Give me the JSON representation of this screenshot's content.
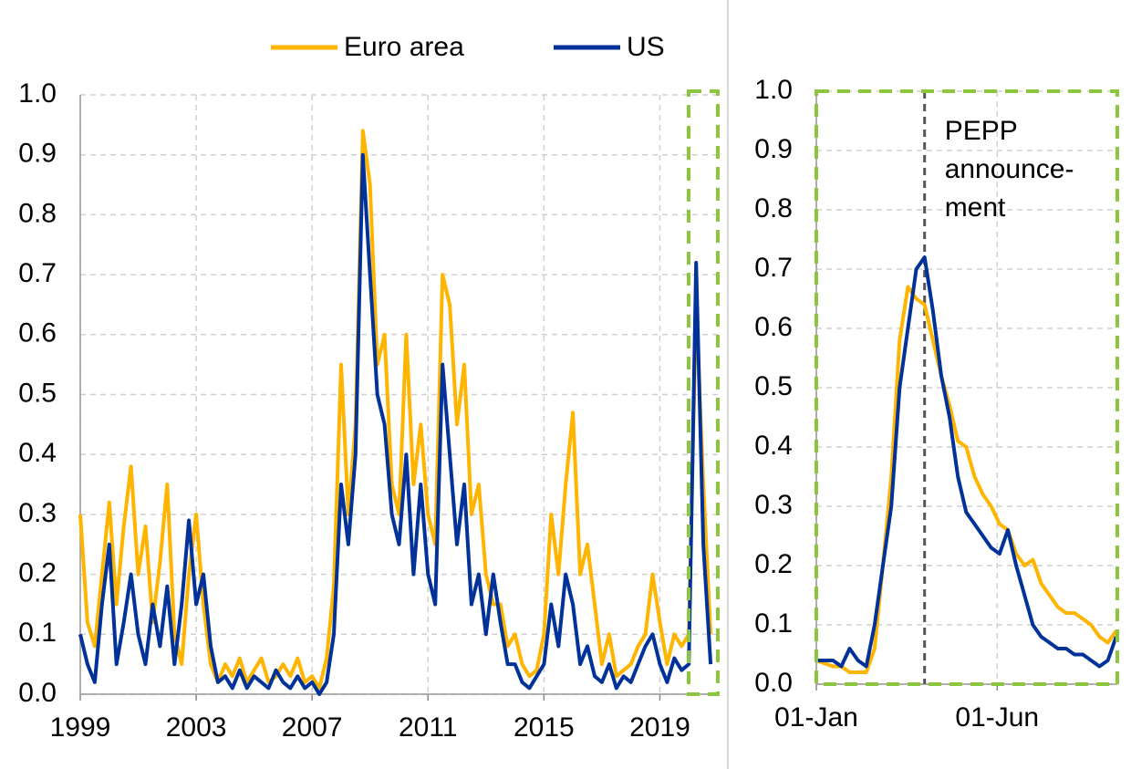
{
  "chart_data": [
    {
      "type": "line",
      "x": [
        1999,
        1999.25,
        1999.5,
        1999.75,
        2000,
        2000.25,
        2000.5,
        2000.75,
        2001,
        2001.25,
        2001.5,
        2001.75,
        2002,
        2002.25,
        2002.5,
        2002.75,
        2003,
        2003.25,
        2003.5,
        2003.75,
        2004,
        2004.25,
        2004.5,
        2004.75,
        2005,
        2005.25,
        2005.5,
        2005.75,
        2006,
        2006.25,
        2006.5,
        2006.75,
        2007,
        2007.25,
        2007.5,
        2007.75,
        2008,
        2008.25,
        2008.5,
        2008.75,
        2009,
        2009.25,
        2009.5,
        2009.75,
        2010,
        2010.25,
        2010.5,
        2010.75,
        2011,
        2011.25,
        2011.5,
        2011.75,
        2012,
        2012.25,
        2012.5,
        2012.75,
        2013,
        2013.25,
        2013.5,
        2013.75,
        2014,
        2014.25,
        2014.5,
        2014.75,
        2015,
        2015.25,
        2015.5,
        2015.75,
        2016,
        2016.25,
        2016.5,
        2016.75,
        2017,
        2017.25,
        2017.5,
        2017.75,
        2018,
        2018.25,
        2018.5,
        2018.75,
        2019,
        2019.25,
        2019.5,
        2019.75,
        2020,
        2020.25,
        2020.5,
        2020.75
      ],
      "series": [
        {
          "name": "Euro area",
          "color": "#ffb400",
          "values": [
            0.3,
            0.12,
            0.08,
            0.2,
            0.32,
            0.15,
            0.28,
            0.38,
            0.2,
            0.28,
            0.12,
            0.22,
            0.35,
            0.1,
            0.05,
            0.2,
            0.3,
            0.15,
            0.05,
            0.02,
            0.05,
            0.03,
            0.06,
            0.02,
            0.04,
            0.06,
            0.02,
            0.03,
            0.05,
            0.03,
            0.06,
            0.02,
            0.03,
            0.01,
            0.06,
            0.18,
            0.55,
            0.3,
            0.45,
            0.94,
            0.85,
            0.55,
            0.6,
            0.35,
            0.3,
            0.6,
            0.35,
            0.45,
            0.3,
            0.25,
            0.7,
            0.65,
            0.45,
            0.55,
            0.3,
            0.35,
            0.2,
            0.15,
            0.15,
            0.08,
            0.1,
            0.05,
            0.03,
            0.04,
            0.1,
            0.3,
            0.2,
            0.35,
            0.47,
            0.2,
            0.25,
            0.15,
            0.05,
            0.1,
            0.03,
            0.04,
            0.05,
            0.08,
            0.1,
            0.2,
            0.12,
            0.05,
            0.1,
            0.08,
            0.1,
            0.65,
            0.35,
            0.1
          ]
        },
        {
          "name": "US",
          "color": "#003299",
          "values": [
            0.1,
            0.05,
            0.02,
            0.15,
            0.25,
            0.05,
            0.12,
            0.2,
            0.1,
            0.05,
            0.15,
            0.08,
            0.18,
            0.05,
            0.15,
            0.29,
            0.15,
            0.2,
            0.08,
            0.02,
            0.03,
            0.01,
            0.04,
            0.01,
            0.03,
            0.02,
            0.01,
            0.04,
            0.02,
            0.01,
            0.03,
            0.01,
            0.02,
            0.0,
            0.02,
            0.1,
            0.35,
            0.25,
            0.4,
            0.9,
            0.7,
            0.5,
            0.45,
            0.3,
            0.25,
            0.4,
            0.2,
            0.35,
            0.2,
            0.15,
            0.55,
            0.4,
            0.25,
            0.35,
            0.15,
            0.2,
            0.1,
            0.2,
            0.12,
            0.05,
            0.05,
            0.02,
            0.01,
            0.03,
            0.05,
            0.15,
            0.08,
            0.2,
            0.15,
            0.05,
            0.08,
            0.03,
            0.02,
            0.05,
            0.01,
            0.03,
            0.02,
            0.05,
            0.08,
            0.1,
            0.05,
            0.02,
            0.06,
            0.04,
            0.05,
            0.72,
            0.25,
            0.05
          ]
        }
      ],
      "xlim": [
        1999,
        2021
      ],
      "xticks": [
        1999,
        2003,
        2007,
        2011,
        2015,
        2019
      ],
      "ylim": [
        0,
        1
      ],
      "yticks": [
        {
          "value": 0,
          "label": "0.0"
        },
        0.1,
        0.2,
        0.3,
        0.4,
        0.5,
        0.6,
        0.7,
        0.8,
        0.9,
        {
          "value": 1,
          "label": "1.0"
        }
      ],
      "grid": true,
      "legend": "top"
    },
    {
      "type": "line",
      "x": [
        0,
        7,
        14,
        21,
        28,
        35,
        42,
        49,
        56,
        63,
        70,
        77,
        84,
        91,
        98,
        105,
        112,
        119,
        126,
        133,
        140,
        147,
        154,
        161,
        168,
        175,
        182,
        189,
        196,
        203,
        210,
        217,
        224,
        231,
        238,
        245,
        252
      ],
      "series": [
        {
          "color": "#ffb400",
          "values": [
            0.04,
            0.035,
            0.03,
            0.03,
            0.02,
            0.02,
            0.02,
            0.06,
            0.2,
            0.35,
            0.58,
            0.67,
            0.65,
            0.64,
            0.58,
            0.52,
            0.47,
            0.41,
            0.4,
            0.35,
            0.32,
            0.3,
            0.27,
            0.26,
            0.22,
            0.2,
            0.21,
            0.17,
            0.15,
            0.13,
            0.12,
            0.12,
            0.11,
            0.1,
            0.08,
            0.07,
            0.09
          ]
        },
        {
          "color": "#003299",
          "values": [
            0.04,
            0.04,
            0.04,
            0.03,
            0.06,
            0.04,
            0.03,
            0.1,
            0.2,
            0.3,
            0.5,
            0.6,
            0.7,
            0.72,
            0.63,
            0.52,
            0.45,
            0.35,
            0.29,
            0.27,
            0.25,
            0.23,
            0.22,
            0.26,
            0.2,
            0.15,
            0.1,
            0.08,
            0.07,
            0.06,
            0.06,
            0.05,
            0.05,
            0.04,
            0.03,
            0.04,
            0.08
          ]
        }
      ],
      "xlim": [
        0,
        253
      ],
      "xticks": [
        {
          "value": 0,
          "label": "01-Jan"
        },
        {
          "value": 152,
          "label": "01-Jun"
        }
      ],
      "ylim": [
        0,
        1
      ],
      "yticks": [
        {
          "value": 0,
          "label": "0.0"
        },
        0.1,
        0.2,
        0.3,
        0.4,
        0.5,
        0.6,
        0.7,
        0.8,
        0.9,
        {
          "value": 1,
          "label": "1.0"
        }
      ],
      "grid": true,
      "annotation": {
        "text": [
          "PEPP",
          "announce-",
          "ment"
        ],
        "x": 91
      }
    }
  ]
}
